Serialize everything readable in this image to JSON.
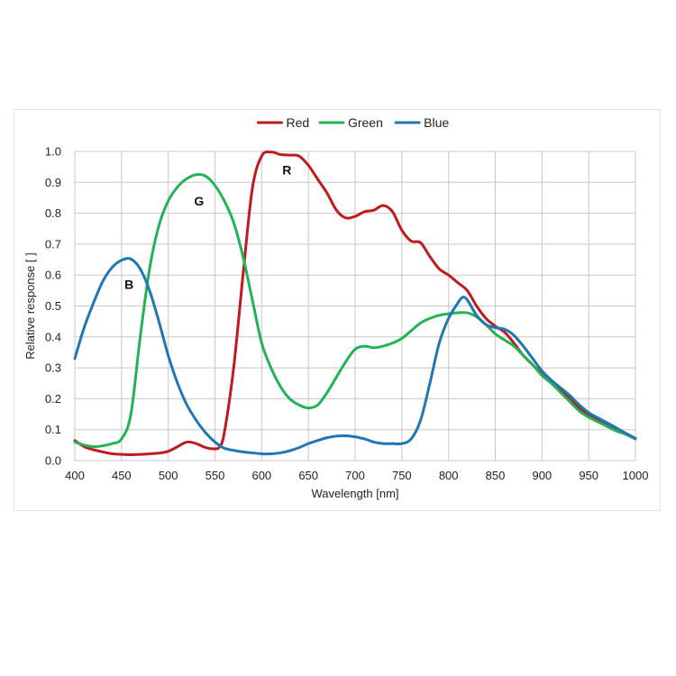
{
  "chart_data": {
    "type": "line",
    "xlabel": "Wavelength [nm]",
    "ylabel": "Relative response [ ]",
    "xlim": [
      400,
      1000
    ],
    "ylim": [
      0,
      1.0
    ],
    "x_ticks": [
      400,
      450,
      500,
      550,
      600,
      650,
      700,
      750,
      800,
      850,
      900,
      950,
      1000
    ],
    "y_ticks": [
      "0.0",
      "0.1",
      "0.2",
      "0.3",
      "0.4",
      "0.5",
      "0.6",
      "0.7",
      "0.8",
      "0.9",
      "1.0"
    ],
    "grid": true,
    "legend_position": "top-center",
    "series": [
      {
        "name": "Red",
        "color": "#c0191f",
        "points": [
          [
            400,
            0.065
          ],
          [
            410,
            0.045
          ],
          [
            420,
            0.035
          ],
          [
            430,
            0.028
          ],
          [
            440,
            0.022
          ],
          [
            450,
            0.02
          ],
          [
            460,
            0.019
          ],
          [
            470,
            0.02
          ],
          [
            480,
            0.022
          ],
          [
            490,
            0.024
          ],
          [
            500,
            0.03
          ],
          [
            510,
            0.045
          ],
          [
            520,
            0.06
          ],
          [
            530,
            0.055
          ],
          [
            540,
            0.042
          ],
          [
            550,
            0.038
          ],
          [
            555,
            0.045
          ],
          [
            560,
            0.09
          ],
          [
            570,
            0.3
          ],
          [
            580,
            0.6
          ],
          [
            590,
            0.88
          ],
          [
            600,
            0.985
          ],
          [
            610,
            0.998
          ],
          [
            620,
            0.99
          ],
          [
            630,
            0.988
          ],
          [
            640,
            0.985
          ],
          [
            650,
            0.955
          ],
          [
            660,
            0.91
          ],
          [
            670,
            0.865
          ],
          [
            680,
            0.81
          ],
          [
            690,
            0.785
          ],
          [
            700,
            0.79
          ],
          [
            710,
            0.805
          ],
          [
            720,
            0.81
          ],
          [
            730,
            0.825
          ],
          [
            740,
            0.805
          ],
          [
            750,
            0.745
          ],
          [
            760,
            0.71
          ],
          [
            770,
            0.705
          ],
          [
            780,
            0.66
          ],
          [
            790,
            0.62
          ],
          [
            800,
            0.6
          ],
          [
            810,
            0.575
          ],
          [
            820,
            0.55
          ],
          [
            830,
            0.5
          ],
          [
            840,
            0.46
          ],
          [
            850,
            0.435
          ],
          [
            860,
            0.415
          ],
          [
            870,
            0.38
          ],
          [
            880,
            0.34
          ],
          [
            890,
            0.31
          ],
          [
            900,
            0.28
          ],
          [
            910,
            0.25
          ],
          [
            920,
            0.225
          ],
          [
            930,
            0.2
          ],
          [
            940,
            0.17
          ],
          [
            950,
            0.145
          ],
          [
            960,
            0.13
          ],
          [
            970,
            0.115
          ],
          [
            980,
            0.1
          ],
          [
            990,
            0.085
          ],
          [
            1000,
            0.07
          ]
        ]
      },
      {
        "name": "Green",
        "color": "#22b454",
        "points": [
          [
            400,
            0.06
          ],
          [
            410,
            0.05
          ],
          [
            420,
            0.045
          ],
          [
            430,
            0.048
          ],
          [
            440,
            0.055
          ],
          [
            450,
            0.07
          ],
          [
            460,
            0.15
          ],
          [
            470,
            0.4
          ],
          [
            480,
            0.62
          ],
          [
            490,
            0.76
          ],
          [
            500,
            0.84
          ],
          [
            510,
            0.885
          ],
          [
            520,
            0.912
          ],
          [
            530,
            0.925
          ],
          [
            540,
            0.92
          ],
          [
            550,
            0.89
          ],
          [
            560,
            0.84
          ],
          [
            570,
            0.77
          ],
          [
            580,
            0.66
          ],
          [
            590,
            0.52
          ],
          [
            600,
            0.38
          ],
          [
            610,
            0.3
          ],
          [
            620,
            0.24
          ],
          [
            630,
            0.2
          ],
          [
            640,
            0.18
          ],
          [
            650,
            0.17
          ],
          [
            660,
            0.18
          ],
          [
            670,
            0.22
          ],
          [
            680,
            0.27
          ],
          [
            690,
            0.32
          ],
          [
            700,
            0.36
          ],
          [
            710,
            0.37
          ],
          [
            720,
            0.365
          ],
          [
            730,
            0.37
          ],
          [
            740,
            0.38
          ],
          [
            750,
            0.395
          ],
          [
            760,
            0.42
          ],
          [
            770,
            0.445
          ],
          [
            780,
            0.46
          ],
          [
            790,
            0.47
          ],
          [
            800,
            0.475
          ],
          [
            810,
            0.478
          ],
          [
            820,
            0.478
          ],
          [
            830,
            0.465
          ],
          [
            840,
            0.44
          ],
          [
            850,
            0.41
          ],
          [
            860,
            0.39
          ],
          [
            870,
            0.37
          ],
          [
            880,
            0.34
          ],
          [
            890,
            0.31
          ],
          [
            900,
            0.275
          ],
          [
            910,
            0.25
          ],
          [
            920,
            0.22
          ],
          [
            930,
            0.19
          ],
          [
            940,
            0.16
          ],
          [
            950,
            0.14
          ],
          [
            960,
            0.125
          ],
          [
            970,
            0.11
          ],
          [
            980,
            0.095
          ],
          [
            990,
            0.085
          ],
          [
            1000,
            0.07
          ]
        ]
      },
      {
        "name": "Blue",
        "color": "#1f77b4",
        "points": [
          [
            400,
            0.33
          ],
          [
            410,
            0.43
          ],
          [
            420,
            0.51
          ],
          [
            430,
            0.58
          ],
          [
            440,
            0.625
          ],
          [
            450,
            0.648
          ],
          [
            460,
            0.652
          ],
          [
            470,
            0.62
          ],
          [
            480,
            0.55
          ],
          [
            490,
            0.45
          ],
          [
            500,
            0.34
          ],
          [
            510,
            0.25
          ],
          [
            520,
            0.18
          ],
          [
            530,
            0.13
          ],
          [
            540,
            0.09
          ],
          [
            550,
            0.06
          ],
          [
            560,
            0.04
          ],
          [
            570,
            0.033
          ],
          [
            580,
            0.028
          ],
          [
            590,
            0.025
          ],
          [
            600,
            0.022
          ],
          [
            610,
            0.022
          ],
          [
            620,
            0.025
          ],
          [
            630,
            0.032
          ],
          [
            640,
            0.042
          ],
          [
            650,
            0.055
          ],
          [
            660,
            0.065
          ],
          [
            670,
            0.074
          ],
          [
            680,
            0.079
          ],
          [
            690,
            0.08
          ],
          [
            700,
            0.077
          ],
          [
            710,
            0.07
          ],
          [
            720,
            0.06
          ],
          [
            730,
            0.055
          ],
          [
            740,
            0.055
          ],
          [
            750,
            0.055
          ],
          [
            760,
            0.07
          ],
          [
            770,
            0.13
          ],
          [
            780,
            0.25
          ],
          [
            790,
            0.38
          ],
          [
            800,
            0.46
          ],
          [
            810,
            0.51
          ],
          [
            815,
            0.528
          ],
          [
            820,
            0.52
          ],
          [
            830,
            0.47
          ],
          [
            840,
            0.44
          ],
          [
            850,
            0.43
          ],
          [
            860,
            0.425
          ],
          [
            870,
            0.405
          ],
          [
            880,
            0.37
          ],
          [
            890,
            0.33
          ],
          [
            900,
            0.29
          ],
          [
            910,
            0.26
          ],
          [
            920,
            0.235
          ],
          [
            930,
            0.21
          ],
          [
            940,
            0.18
          ],
          [
            950,
            0.155
          ],
          [
            960,
            0.138
          ],
          [
            970,
            0.122
          ],
          [
            980,
            0.105
          ],
          [
            990,
            0.088
          ],
          [
            1000,
            0.072
          ]
        ]
      }
    ],
    "annotations": [
      {
        "text": "R",
        "x": 627,
        "y": 0.94
      },
      {
        "text": "G",
        "x": 533,
        "y": 0.84
      },
      {
        "text": "B",
        "x": 458,
        "y": 0.57
      }
    ]
  }
}
